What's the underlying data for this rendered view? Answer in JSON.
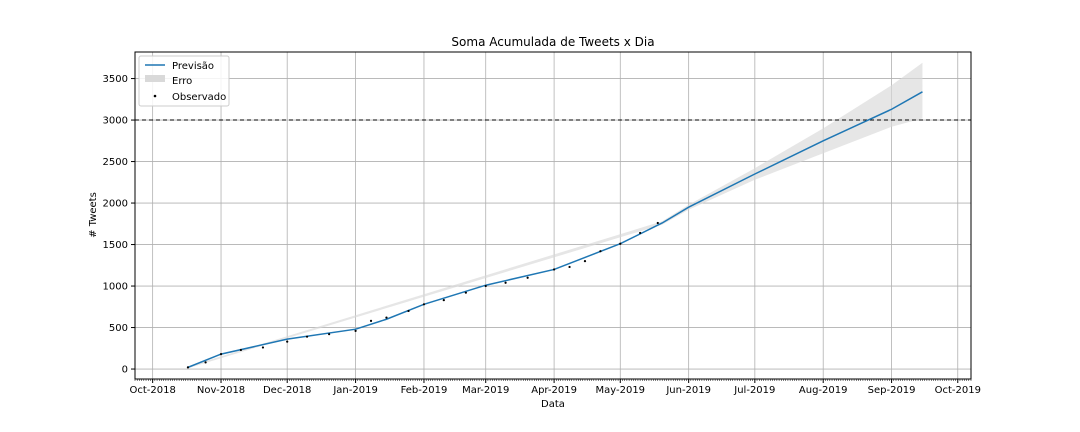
{
  "chart_data": {
    "type": "line",
    "title": "Soma Acumulada de Tweets x Dia",
    "xlabel": "Data",
    "ylabel": "# Tweets",
    "xlim": [
      "2018-09-23",
      "2019-10-07"
    ],
    "ylim": [
      -120,
      3820
    ],
    "x_ticks": [
      "2018-10-01",
      "2018-11-01",
      "2018-12-01",
      "2019-01-01",
      "2019-02-01",
      "2019-03-01",
      "2019-04-01",
      "2019-05-01",
      "2019-06-01",
      "2019-07-01",
      "2019-08-01",
      "2019-09-01",
      "2019-10-01"
    ],
    "x_tick_labels": [
      "Oct-2018",
      "Nov-2018",
      "Dec-2018",
      "Jan-2019",
      "Feb-2019",
      "Mar-2019",
      "Apr-2019",
      "May-2019",
      "Jun-2019",
      "Jul-2019",
      "Aug-2019",
      "Sep-2019",
      "Oct-2019"
    ],
    "y_ticks": [
      0,
      500,
      1000,
      1500,
      2000,
      2500,
      3000,
      3500
    ],
    "y_tick_labels": [
      "0",
      "500",
      "1000",
      "1500",
      "2000",
      "2500",
      "3000",
      "3500"
    ],
    "grid": true,
    "legend_position": "top-left",
    "reference_line": {
      "y": 3000,
      "style": "dashed",
      "color": "#000000"
    },
    "series": [
      {
        "name": "Previsão",
        "kind": "line",
        "color": "#1f77b4",
        "x": [
          "2018-10-17",
          "2018-11-01",
          "2018-12-01",
          "2019-01-01",
          "2019-01-15",
          "2019-02-01",
          "2019-03-01",
          "2019-04-01",
          "2019-05-01",
          "2019-05-20",
          "2019-06-01",
          "2019-07-01",
          "2019-08-01",
          "2019-09-01",
          "2019-09-15"
        ],
        "y": [
          20,
          180,
          360,
          480,
          600,
          780,
          1010,
          1200,
          1510,
          1760,
          1950,
          2350,
          2750,
          3130,
          3340
        ]
      },
      {
        "name": "Erro",
        "kind": "band",
        "color": "#d9d9d9",
        "x": [
          "2018-10-17",
          "2019-05-20",
          "2019-06-01",
          "2019-07-01",
          "2019-08-01",
          "2019-09-01",
          "2019-09-15"
        ],
        "lower": [
          10,
          1740,
          1920,
          2280,
          2600,
          2920,
          3020
        ],
        "upper": [
          30,
          1780,
          1980,
          2420,
          2900,
          3420,
          3690
        ]
      },
      {
        "name": "Observado",
        "kind": "scatter",
        "color": "#000000",
        "x": [
          "2018-10-17",
          "2018-10-25",
          "2018-11-01",
          "2018-11-10",
          "2018-11-20",
          "2018-12-01",
          "2018-12-10",
          "2018-12-20",
          "2019-01-01",
          "2019-01-08",
          "2019-01-15",
          "2019-01-25",
          "2019-02-01",
          "2019-02-10",
          "2019-02-20",
          "2019-03-01",
          "2019-03-10",
          "2019-03-20",
          "2019-04-01",
          "2019-04-08",
          "2019-04-15",
          "2019-04-22",
          "2019-05-01",
          "2019-05-10",
          "2019-05-18"
        ],
        "y": [
          20,
          80,
          180,
          230,
          260,
          330,
          390,
          420,
          460,
          580,
          620,
          700,
          780,
          830,
          920,
          1000,
          1040,
          1100,
          1200,
          1230,
          1300,
          1420,
          1510,
          1640,
          1760
        ]
      }
    ]
  }
}
